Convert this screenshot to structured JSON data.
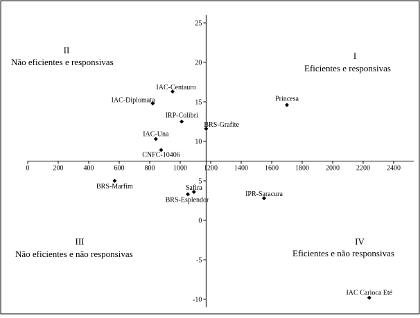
{
  "chart_data": {
    "type": "scatter",
    "xlim": [
      0,
      2500
    ],
    "ylim": [
      -11,
      26
    ],
    "x_ticks": [
      0,
      200,
      400,
      600,
      800,
      1000,
      1200,
      1400,
      1600,
      1800,
      2000,
      2200,
      2400
    ],
    "y_ticks": [
      -10,
      -5,
      0,
      5,
      10,
      15,
      20,
      25
    ],
    "x_origin_y": 7.5,
    "y_origin_x": 1170,
    "points": [
      {
        "label": "IAC-Centauro",
        "x": 950,
        "y": 16.3
      },
      {
        "label": "IAC-Diplomata",
        "x": 820,
        "y": 14.8
      },
      {
        "label": "IRP-Colibri",
        "x": 1010,
        "y": 12.5
      },
      {
        "label": "BRS-Grafite",
        "x": 1170,
        "y": 11.6
      },
      {
        "label": "Princesa",
        "x": 1700,
        "y": 14.6
      },
      {
        "label": "IAC-Una",
        "x": 840,
        "y": 10.3
      },
      {
        "label": "CNFC-10406",
        "x": 875,
        "y": 8.9
      },
      {
        "label": "BRS-Marfim",
        "x": 570,
        "y": 5.0
      },
      {
        "label": "Safira",
        "x": 1090,
        "y": 3.6
      },
      {
        "label": "BRS-Esplendor",
        "x": 1050,
        "y": 3.3
      },
      {
        "label": "IPR-Saracura",
        "x": 1550,
        "y": 2.8
      },
      {
        "label": "IAC Carioca Eté",
        "x": 2240,
        "y": -9.8
      }
    ],
    "quadrants": [
      {
        "numeral": "II",
        "text": "Não eficientes e responsivas"
      },
      {
        "numeral": "I",
        "text": "Eficientes e responsivas"
      },
      {
        "numeral": "III",
        "text": "Não eficientes e não responsivas"
      },
      {
        "numeral": "IV",
        "text": "Eficientes e não responsivas"
      }
    ]
  }
}
